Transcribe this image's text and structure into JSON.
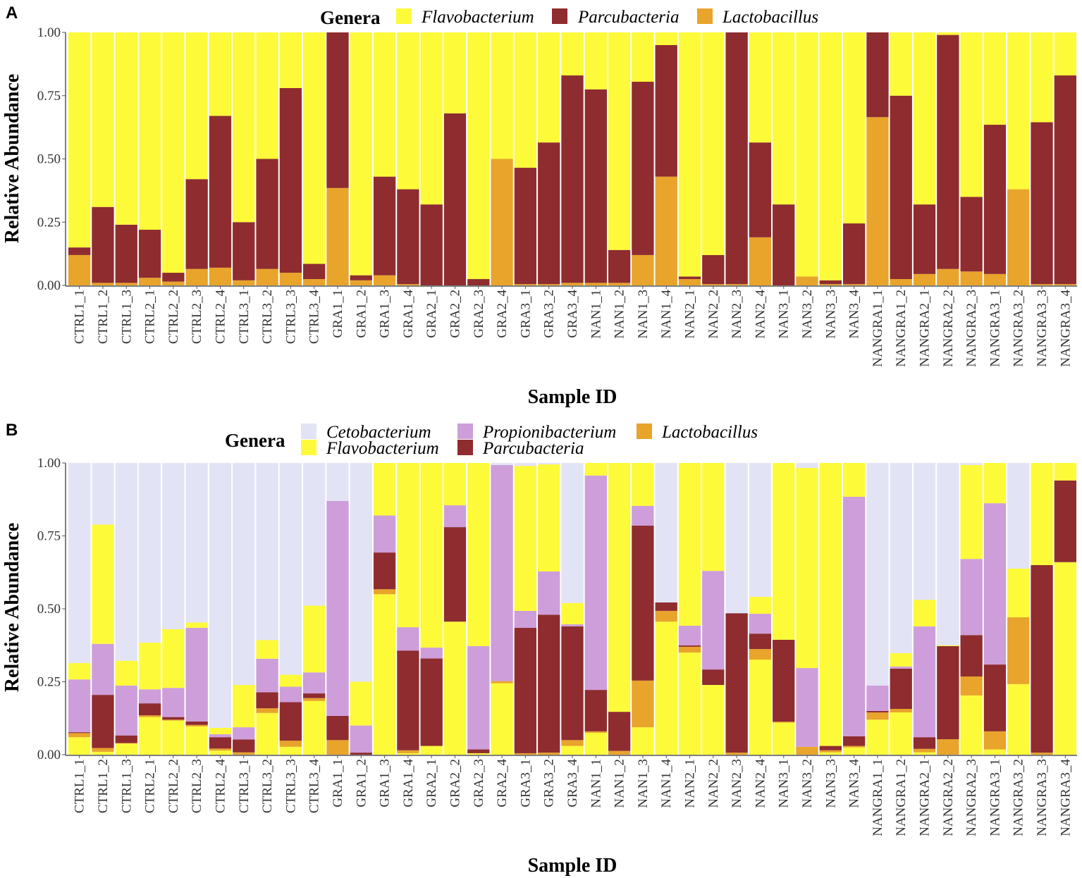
{
  "samples": [
    "CTRL1_1",
    "CTRL1_2",
    "CTRL1_3",
    "CTRL2_1",
    "CTRL2_2",
    "CTRL2_3",
    "CTRL2_4",
    "CTRL3_1",
    "CTRL3_2",
    "CTRL3_3",
    "CTRL3_4",
    "GRA1_1",
    "GRA1_2",
    "GRA1_3",
    "GRA1_4",
    "GRA2_1",
    "GRA2_2",
    "GRA2_3",
    "GRA2_4",
    "GRA3_1",
    "GRA3_2",
    "GRA3_4",
    "NAN1_1",
    "NAN1_2",
    "NAN1_3",
    "NAN1_4",
    "NAN2_1",
    "NAN2_2",
    "NAN2_3",
    "NAN2_4",
    "NAN3_1",
    "NAN3_2",
    "NAN3_3",
    "NAN3_4",
    "NANGRA1_1",
    "NANGRA1_2",
    "NANGRA2_1",
    "NANGRA2_2",
    "NANGRA2_3",
    "NANGRA3_1",
    "NANGRA3_2",
    "NANGRA3_3",
    "NANGRA3_4"
  ],
  "colors": {
    "Flavobacterium": "#FDFA3A",
    "Parcubacteria": "#8E2C2F",
    "Lactobacillus": "#E8A42B",
    "Propionibacterium": "#CD9EDA",
    "Cetobacterium": "#E3E3F6"
  },
  "chart_data": [
    {
      "panel": "A",
      "type": "bar",
      "stacked": true,
      "xlabel": "Sample ID",
      "ylabel": "Relative Abundance",
      "ylim": [
        0,
        1
      ],
      "yticks": [
        "0.00",
        "0.25",
        "0.50",
        "0.75",
        "1.00"
      ],
      "legend_title": "Genera",
      "legend_placement": "top",
      "legend": [
        "Flavobacterium",
        "Parcubacteria",
        "Lactobacillus"
      ],
      "stack_order_bottom_up": [
        "Lactobacillus",
        "Parcubacteria",
        "Flavobacterium"
      ],
      "cumulative_tops_note": "per sample: [Lactobacillus top, Parcubacteria top]; Flavobacterium fills to 1.0",
      "cumulative": [
        [
          0.12,
          0.15
        ],
        [
          0.01,
          0.31
        ],
        [
          0.01,
          0.24
        ],
        [
          0.03,
          0.22
        ],
        [
          0.015,
          0.05
        ],
        [
          0.065,
          0.42
        ],
        [
          0.07,
          0.67
        ],
        [
          0.02,
          0.25
        ],
        [
          0.065,
          0.5
        ],
        [
          0.05,
          0.78
        ],
        [
          0.025,
          0.085
        ],
        [
          0.385,
          1.0
        ],
        [
          0.02,
          0.04
        ],
        [
          0.04,
          0.43
        ],
        [
          0.005,
          0.38
        ],
        [
          0,
          0.32
        ],
        [
          0,
          0.68
        ],
        [
          0,
          0.025
        ],
        [
          0.5,
          0.5
        ],
        [
          0.005,
          0.465
        ],
        [
          0.005,
          0.565
        ],
        [
          0.01,
          0.83
        ],
        [
          0.01,
          0.775
        ],
        [
          0.01,
          0.14
        ],
        [
          0.12,
          0.805
        ],
        [
          0.43,
          0.95
        ],
        [
          0.025,
          0.035
        ],
        [
          0.005,
          0.12
        ],
        [
          0.005,
          1.0
        ],
        [
          0.19,
          0.565
        ],
        [
          0,
          0.32
        ],
        [
          0.035,
          0.035
        ],
        [
          0.005,
          0.02
        ],
        [
          0.005,
          0.245
        ],
        [
          0.665,
          1.0
        ],
        [
          0.025,
          0.75
        ],
        [
          0.045,
          0.32
        ],
        [
          0.065,
          0.99
        ],
        [
          0.055,
          0.35
        ],
        [
          0.045,
          0.635
        ],
        [
          0.38,
          0.38
        ],
        [
          0.005,
          0.645
        ],
        [
          0.005,
          0.83
        ]
      ]
    },
    {
      "panel": "B",
      "type": "bar",
      "stacked": true,
      "xlabel": "Sample ID",
      "ylabel": "Relative Abundance",
      "ylim": [
        0,
        1
      ],
      "yticks": [
        "0.00",
        "0.25",
        "0.50",
        "0.75",
        "1.00"
      ],
      "legend_title": "Genera",
      "legend_placement": "top",
      "legend": [
        "Cetobacterium",
        "Flavobacterium",
        "Propionibacterium",
        "Parcubacteria",
        "Lactobacillus"
      ],
      "stack_order_bottom_up": [
        "other-yellow",
        "Lactobacillus",
        "Parcubacteria",
        "Propionibacterium",
        "Flavobacterium",
        "Cetobacterium"
      ],
      "cumulative": [
        [
          0.06,
          0.074,
          0.077,
          0.258,
          0.314
        ],
        [
          0.01,
          0.023,
          0.205,
          0.38,
          0.789
        ],
        [
          0.038,
          0.04,
          0.066,
          0.237,
          0.322
        ],
        [
          0.129,
          0.135,
          0.176,
          0.224,
          0.384
        ],
        [
          0.117,
          0.12,
          0.129,
          0.229,
          0.43
        ],
        [
          0.097,
          0.102,
          0.114,
          0.435,
          0.453
        ],
        [
          0.014,
          0.021,
          0.06,
          0.07,
          0.092
        ],
        [
          0,
          0.008,
          0.052,
          0.094,
          0.239
        ],
        [
          0.143,
          0.159,
          0.214,
          0.329,
          0.393
        ],
        [
          0.027,
          0.048,
          0.18,
          0.233,
          0.274
        ],
        [
          0.184,
          0.194,
          0.21,
          0.282,
          0.511
        ],
        [
          0,
          0.05,
          0.133,
          0.87,
          0.87
        ],
        [
          0,
          0,
          0.007,
          0.1,
          0.25
        ],
        [
          0.55,
          0.567,
          0.693,
          0.82,
          1.0
        ],
        [
          0.005,
          0.015,
          0.357,
          0.437,
          1.0
        ],
        [
          0.03,
          0.03,
          0.33,
          0.367,
          1.0
        ],
        [
          0.456,
          0.456,
          0.78,
          0.855,
          1.0
        ],
        [
          0.005,
          0.005,
          0.018,
          0.372,
          1.0
        ],
        [
          0.245,
          0.252,
          0.252,
          0.993,
          0.993
        ],
        [
          0,
          0.005,
          0.435,
          0.493,
          0.99
        ],
        [
          0,
          0.007,
          0.48,
          0.628,
          0.995
        ],
        [
          0.03,
          0.05,
          0.44,
          0.447,
          0.52
        ],
        [
          0.075,
          0.08,
          0.222,
          0.957,
          1.0
        ],
        [
          0,
          0.013,
          0.147,
          0.147,
          1.0
        ],
        [
          0.094,
          0.254,
          0.785,
          0.853,
          1.0
        ],
        [
          0.456,
          0.493,
          0.522,
          0.522,
          0.522
        ],
        [
          0.35,
          0.37,
          0.375,
          0.442,
          1.0
        ],
        [
          0.239,
          0.239,
          0.292,
          0.63,
          1.0
        ],
        [
          0,
          0.007,
          0.485,
          0.485,
          0.485
        ],
        [
          0.326,
          0.362,
          0.415,
          0.483,
          0.541
        ],
        [
          0.11,
          0.113,
          0.394,
          0.394,
          1.0
        ],
        [
          0,
          0.027,
          0.027,
          0.297,
          0.983
        ],
        [
          0.008,
          0.015,
          0.03,
          0.03,
          1.0
        ],
        [
          0.025,
          0.03,
          0.063,
          0.884,
          1.0
        ],
        [
          0.12,
          0.145,
          0.15,
          0.237,
          0.237
        ],
        [
          0.145,
          0.157,
          0.295,
          0.302,
          0.348
        ],
        [
          0.008,
          0.02,
          0.06,
          0.44,
          0.531
        ],
        [
          0,
          0.053,
          0.372,
          0.372,
          0.375
        ],
        [
          0.203,
          0.268,
          0.41,
          0.671,
          0.993
        ],
        [
          0.018,
          0.08,
          0.309,
          0.862,
          1.0
        ],
        [
          0.242,
          0.471,
          0.471,
          0.471,
          0.638
        ],
        [
          0,
          0.007,
          0.65,
          0.65,
          1.0
        ],
        [
          0.66,
          0.66,
          0.94,
          0.94,
          1.0
        ]
      ]
    }
  ]
}
